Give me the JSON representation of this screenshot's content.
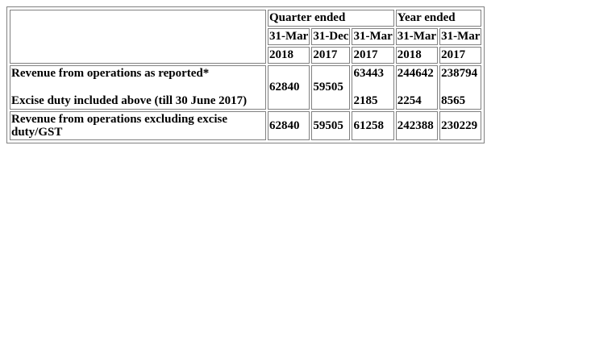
{
  "table": {
    "group_headers": {
      "quarter": "Quarter ended",
      "year": "Year ended"
    },
    "month_headers": [
      "31-Mar",
      "31-Dec",
      "31-Mar",
      "31-Mar",
      "31-Mar"
    ],
    "year_headers": [
      "2018",
      "2017",
      "2017",
      "2018",
      "2017"
    ],
    "rows": {
      "revenue_reported": {
        "label": "Revenue from operations as reported*",
        "values": [
          "62840",
          "59505",
          "63443",
          "244642",
          "238794"
        ]
      },
      "excise_duty": {
        "label": "Excise duty included above (till 30 June 2017)",
        "values": [
          "",
          "",
          "2185",
          "2254",
          "8565"
        ]
      },
      "revenue_excluding": {
        "label": "Revenue from operations excluding excise duty/GST",
        "values": [
          "62840",
          "59505",
          "61258",
          "242388",
          "230229"
        ]
      }
    }
  }
}
